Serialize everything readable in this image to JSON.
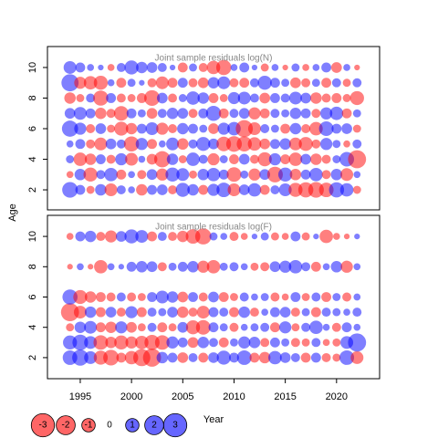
{
  "chart_data": [
    {
      "type": "bubble",
      "title": "Joint sample residuals log(N)",
      "x": [
        1994,
        1995,
        1996,
        1997,
        1998,
        1999,
        2000,
        2001,
        2002,
        2003,
        2004,
        2005,
        2006,
        2007,
        2008,
        2009,
        2010,
        2011,
        2012,
        2013,
        2014,
        2015,
        2016,
        2017,
        2018,
        2019,
        2020,
        2021,
        2022
      ],
      "ages": [
        2,
        3,
        4,
        5,
        6,
        7,
        8,
        9,
        10
      ],
      "values": [
        [
          1.5,
          0.6,
          -0.4,
          0.8,
          -1.0,
          0.5,
          0.3,
          -0.8,
          0.6,
          0.7,
          -0.5,
          1.2,
          0.8,
          -0.6,
          0.9,
          1.3,
          -1.0,
          0.7,
          1.1,
          -0.6,
          0.5,
          1.0,
          -1.2,
          -1.4,
          -1.5,
          -1.3,
          1.4,
          1.1,
          -0.4
        ],
        [
          -0.3,
          0.8,
          -1.2,
          0.5,
          1.1,
          -0.6,
          0.3,
          -0.5,
          0.7,
          -0.9,
          1.2,
          1.0,
          -0.4,
          0.8,
          1.1,
          0.6,
          -1.3,
          0.4,
          -0.9,
          0.7,
          -1.5,
          1.2,
          -0.8,
          0.6,
          1.1,
          -0.5,
          0.8,
          -1.0,
          0.3
        ],
        [
          0.4,
          -1.1,
          -0.8,
          0.6,
          -0.5,
          0.9,
          -1.0,
          0.3,
          -0.7,
          -1.6,
          0.8,
          -0.4,
          1.1,
          0.5,
          -0.9,
          0.4,
          -0.6,
          0.7,
          -0.5,
          -1.2,
          0.9,
          -0.6,
          -1.1,
          0.7,
          -0.8,
          -0.5,
          0.4,
          1.3,
          -2.0
        ],
        [
          0.3,
          0.6,
          -0.5,
          -1.0,
          0.7,
          0.5,
          -1.4,
          0.9,
          -0.6,
          0.3,
          1.0,
          -0.8,
          0.5,
          1.2,
          0.7,
          -1.3,
          -1.5,
          -1.4,
          -1.1,
          -0.7,
          0.6,
          0.8,
          -1.0,
          -1.2,
          -0.5,
          0.9,
          0.4,
          -0.3,
          0.5
        ],
        [
          1.6,
          0.9,
          -0.5,
          0.7,
          -0.4,
          -1.2,
          -0.8,
          0.6,
          1.0,
          -0.9,
          -0.5,
          0.8,
          0.6,
          0.4,
          -0.7,
          0.9,
          1.1,
          -1.8,
          -1.0,
          0.5,
          0.4,
          -0.6,
          0.8,
          -0.5,
          -1.1,
          1.3,
          0.6,
          0.7,
          -0.4
        ],
        [
          0.7,
          1.0,
          0.6,
          -0.8,
          -0.5,
          -1.3,
          0.6,
          0.4,
          -0.7,
          0.5,
          0.8,
          0.7,
          -0.5,
          0.6,
          1.4,
          -0.6,
          0.5,
          0.7,
          -0.9,
          -0.6,
          0.5,
          0.4,
          0.8,
          0.6,
          -0.5,
          0.9,
          1.1,
          -0.6,
          0.4
        ],
        [
          -0.8,
          -0.4,
          0.5,
          -1.4,
          0.6,
          -0.5,
          -0.4,
          -0.6,
          -1.5,
          0.7,
          -0.5,
          0.4,
          1.1,
          0.8,
          -0.6,
          -0.4,
          0.9,
          1.0,
          0.5,
          -0.7,
          0.6,
          0.5,
          1.0,
          0.7,
          -0.8,
          -0.5,
          -0.6,
          -0.4,
          -1.2
        ],
        [
          1.8,
          -0.9,
          -1.1,
          -1.2,
          0.3,
          -0.6,
          0.4,
          0.2,
          -0.5,
          -1.0,
          -0.6,
          0.6,
          -0.5,
          -0.7,
          0.8,
          1.0,
          -0.5,
          -0.6,
          0.5,
          1.2,
          0.6,
          0.4,
          -0.7,
          -0.5,
          0.4,
          -0.6,
          0.5,
          -0.4,
          0.5
        ],
        [
          1.0,
          0.6,
          0.3,
          0.2,
          -0.3,
          0.5,
          1.2,
          0.8,
          0.7,
          0.5,
          0.2,
          -0.6,
          0.4,
          -0.5,
          -1.1,
          -1.4,
          0.3,
          0.6,
          0.2,
          -0.4,
          0.3,
          -0.2,
          0.4,
          -0.3,
          0.3,
          0.6,
          -0.7,
          0.3,
          -0.2
        ]
      ],
      "xlim": [
        1991.8,
        2024.2
      ],
      "ylim": [
        0.69,
        11.37
      ],
      "yticks": [
        2,
        4,
        6,
        8,
        10
      ]
    },
    {
      "type": "bubble",
      "title": "Joint sample residuals log(F)",
      "x": [
        1994,
        1995,
        1996,
        1997,
        1998,
        1999,
        2000,
        2001,
        2002,
        2003,
        2004,
        2005,
        2006,
        2007,
        2008,
        2009,
        2010,
        2011,
        2012,
        2013,
        2014,
        2015,
        2016,
        2017,
        2018,
        2019,
        2020,
        2021,
        2022
      ],
      "ages": [
        2,
        3,
        4,
        5,
        6,
        8,
        10
      ],
      "values": [
        [
          1.3,
          1.6,
          1.0,
          -1.2,
          -1.5,
          -0.6,
          -1.1,
          -1.8,
          -2.0,
          0.8,
          0.6,
          -0.7,
          0.5,
          -0.6,
          0.7,
          1.2,
          0.6,
          1.3,
          -0.6,
          -0.8,
          1.1,
          0.7,
          0.5,
          -0.6,
          0.6,
          -0.5,
          -0.4,
          1.3,
          -1.0
        ],
        [
          1.2,
          1.5,
          1.0,
          -1.3,
          -0.8,
          -1.2,
          -0.9,
          -1.1,
          -1.4,
          -1.3,
          0.9,
          0.6,
          -0.7,
          0.8,
          0.5,
          -0.6,
          0.4,
          0.9,
          0.8,
          -0.5,
          0.6,
          0.4,
          -0.5,
          -0.4,
          0.5,
          -0.3,
          -0.4,
          1.0,
          2.0
        ],
        [
          -0.4,
          0.8,
          1.0,
          -0.6,
          -0.8,
          0.9,
          -0.7,
          -0.4,
          0.5,
          -0.6,
          -0.4,
          0.7,
          -1.2,
          -1.3,
          0.6,
          0.4,
          -0.5,
          0.3,
          0.4,
          0.5,
          -0.6,
          0.9,
          -0.4,
          0.5,
          1.1,
          0.3,
          -0.5,
          0.6,
          0.3
        ],
        [
          -2.0,
          -1.0,
          0.8,
          -0.6,
          0.7,
          -0.5,
          0.9,
          -0.6,
          0.5,
          0.4,
          0.7,
          -0.8,
          -0.5,
          -1.0,
          0.6,
          0.5,
          -0.6,
          0.8,
          -0.5,
          0.3,
          0.6,
          0.7,
          -0.5,
          0.4,
          -0.6,
          0.5,
          0.4,
          0.3,
          0.5
        ],
        [
          1.4,
          -1.2,
          -0.8,
          -0.6,
          -0.5,
          0.5,
          -0.5,
          -0.4,
          0.6,
          1.0,
          0.8,
          -0.7,
          0.6,
          -0.5,
          0.7,
          -0.6,
          -0.4,
          0.5,
          0.3,
          0.4,
          -0.5,
          -0.3,
          0.6,
          -0.4,
          0.5,
          -0.6,
          0.4,
          -0.5,
          0.3
        ],
        [
          -0.2,
          0.3,
          -0.2,
          -1.1,
          0.3,
          0.2,
          0.6,
          0.8,
          0.7,
          -0.5,
          0.4,
          0.6,
          0.8,
          -0.9,
          -1.1,
          0.4,
          0.5,
          0.3,
          -0.4,
          -0.5,
          0.7,
          0.9,
          1.1,
          0.5,
          -0.6,
          0.3,
          0.8,
          -0.9,
          0.3
        ],
        [
          -0.3,
          0.6,
          0.8,
          -0.5,
          -0.9,
          0.7,
          1.2,
          1.0,
          -0.6,
          0.5,
          -0.5,
          -0.8,
          -1.3,
          -1.6,
          0.4,
          0.3,
          -0.5,
          -0.3,
          0.2,
          0.4,
          -0.4,
          -0.3,
          0.6,
          -0.4,
          0.2,
          -1.1,
          -0.3,
          -0.2,
          0.2
        ]
      ],
      "xlim": [
        1991.8,
        2024.2
      ],
      "ylim": [
        0.61,
        11.39
      ],
      "yticks": [
        2,
        4,
        6,
        8,
        10
      ],
      "xticks": [
        1995,
        2000,
        2005,
        2010,
        2015,
        2020
      ]
    }
  ],
  "axis_labels": {
    "x": "Year",
    "y": "Age"
  },
  "legend": [
    -3,
    -2,
    -1,
    0,
    1,
    2,
    3
  ],
  "colors": {
    "positive": "#0000ff",
    "negative": "#ff0000"
  }
}
